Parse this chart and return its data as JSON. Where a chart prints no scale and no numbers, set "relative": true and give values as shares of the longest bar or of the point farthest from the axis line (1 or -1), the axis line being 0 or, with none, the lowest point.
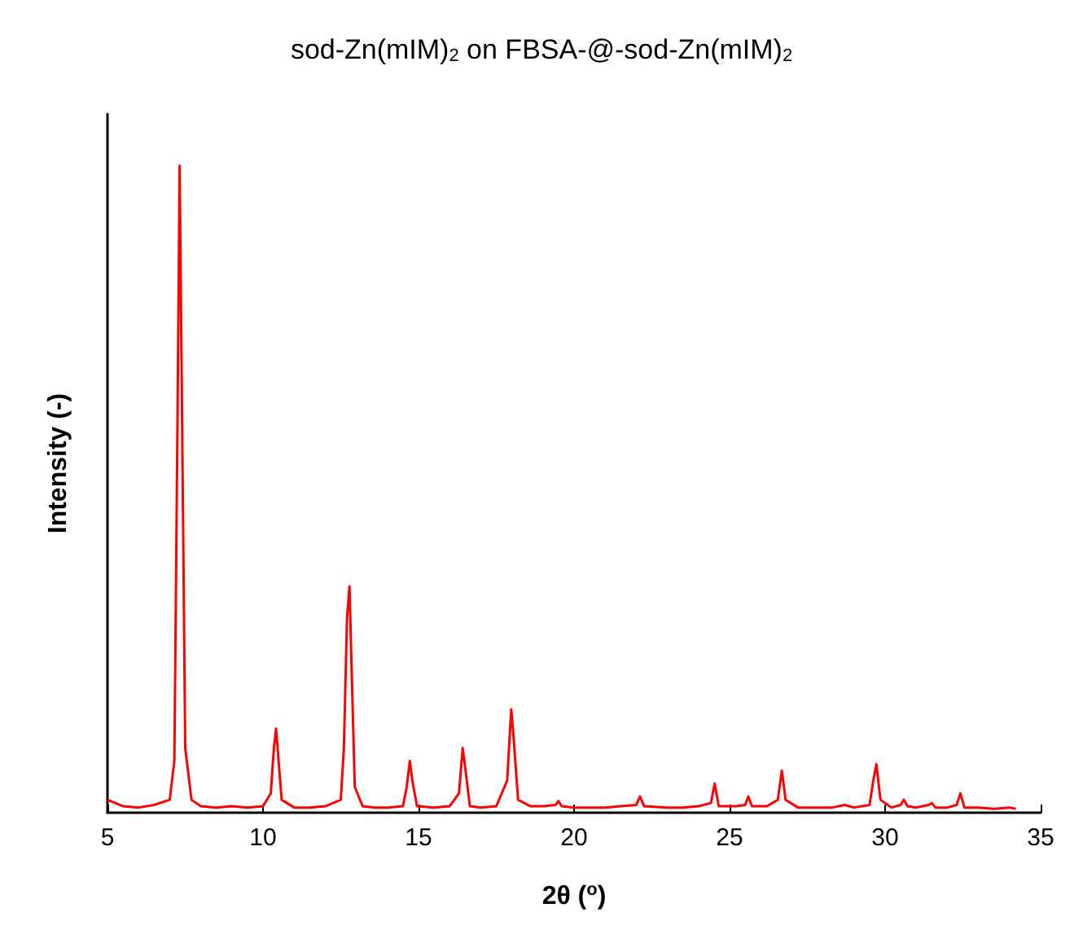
{
  "chart_data": {
    "type": "line",
    "title": "sod-Zn(mIM)$_{2}$ on FBSA-@-sod-Zn(mIM)$_{2}$",
    "xlabel": "2θ ($^{o}$)",
    "ylabel": "Intensity (-)",
    "relative": true,
    "grid": false,
    "marker": "none",
    "line_style": "solid",
    "xlim": [
      5,
      35
    ],
    "xticks": [
      5,
      10,
      15,
      20,
      25,
      30,
      35
    ],
    "x": [
      5.0,
      5.5,
      6.0,
      6.5,
      7.0,
      7.15,
      7.25,
      7.32,
      7.4,
      7.5,
      7.7,
      8.0,
      8.5,
      9.0,
      9.5,
      10.0,
      10.25,
      10.35,
      10.42,
      10.5,
      10.6,
      11.0,
      11.5,
      12.0,
      12.5,
      12.6,
      12.7,
      12.78,
      12.85,
      12.95,
      13.2,
      13.6,
      14.0,
      14.5,
      14.62,
      14.72,
      14.8,
      14.95,
      15.5,
      16.0,
      16.3,
      16.42,
      16.5,
      16.65,
      17.0,
      17.5,
      17.85,
      17.98,
      18.05,
      18.2,
      18.6,
      19.0,
      19.4,
      19.5,
      19.6,
      20.0,
      20.5,
      21.0,
      21.5,
      22.0,
      22.12,
      22.25,
      23.0,
      23.5,
      24.0,
      24.4,
      24.52,
      24.65,
      25.2,
      25.5,
      25.6,
      25.72,
      26.2,
      26.55,
      26.68,
      26.8,
      27.2,
      27.8,
      28.3,
      28.7,
      29.0,
      29.5,
      29.62,
      29.72,
      29.85,
      30.2,
      30.5,
      30.6,
      30.72,
      31.0,
      31.4,
      31.5,
      31.62,
      32.0,
      32.3,
      32.42,
      32.55,
      33.0,
      33.5,
      34.0,
      34.2
    ],
    "series": [
      {
        "color": "#ff0000",
        "values": [
          0.02,
          0.01,
          0.008,
          0.012,
          0.02,
          0.08,
          0.6,
          1.0,
          0.6,
          0.1,
          0.02,
          0.01,
          0.008,
          0.01,
          0.008,
          0.01,
          0.03,
          0.1,
          0.13,
          0.08,
          0.02,
          0.008,
          0.008,
          0.01,
          0.02,
          0.1,
          0.3,
          0.35,
          0.22,
          0.04,
          0.01,
          0.008,
          0.008,
          0.01,
          0.04,
          0.08,
          0.05,
          0.01,
          0.008,
          0.01,
          0.03,
          0.1,
          0.07,
          0.01,
          0.008,
          0.01,
          0.05,
          0.16,
          0.12,
          0.02,
          0.01,
          0.01,
          0.012,
          0.018,
          0.01,
          0.008,
          0.008,
          0.008,
          0.01,
          0.012,
          0.025,
          0.01,
          0.008,
          0.008,
          0.01,
          0.015,
          0.045,
          0.01,
          0.01,
          0.012,
          0.025,
          0.01,
          0.01,
          0.02,
          0.065,
          0.02,
          0.008,
          0.008,
          0.008,
          0.012,
          0.008,
          0.012,
          0.05,
          0.075,
          0.02,
          0.008,
          0.012,
          0.02,
          0.01,
          0.008,
          0.012,
          0.015,
          0.008,
          0.008,
          0.012,
          0.03,
          0.008,
          0.008,
          0.006,
          0.008,
          0.006
        ]
      }
    ]
  }
}
